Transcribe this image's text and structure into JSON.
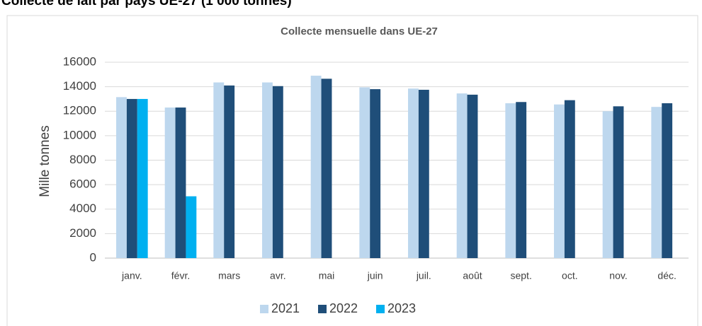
{
  "page_title": "Collecte de lait par pays UE-27  (1 000 tonnes)",
  "chart_data": {
    "type": "bar",
    "title": "Collecte mensuelle dans UE-27",
    "y_label": "Mille tonnes",
    "categories": [
      "janv.",
      "févr.",
      "mars",
      "avr.",
      "mai",
      "juin",
      "juil.",
      "août",
      "sept.",
      "oct.",
      "nov.",
      "déc."
    ],
    "series": [
      {
        "name": "2021",
        "color": "#bdd7ee",
        "values": [
          13150,
          12300,
          14350,
          14350,
          14900,
          13950,
          13850,
          13450,
          12650,
          12550,
          12000,
          12350
        ]
      },
      {
        "name": "2022",
        "color": "#1f4e79",
        "values": [
          13000,
          12300,
          14100,
          14050,
          14650,
          13800,
          13750,
          13350,
          12750,
          12900,
          12400,
          12650
        ]
      },
      {
        "name": "2023",
        "color": "#00b0f0",
        "values": [
          13000,
          5050,
          null,
          null,
          null,
          null,
          null,
          null,
          null,
          null,
          null,
          null
        ]
      }
    ],
    "ylim": [
      0,
      16000
    ],
    "yticks": [
      0,
      2000,
      4000,
      6000,
      8000,
      10000,
      12000,
      14000,
      16000
    ],
    "grid": true,
    "legend": "bottom"
  }
}
